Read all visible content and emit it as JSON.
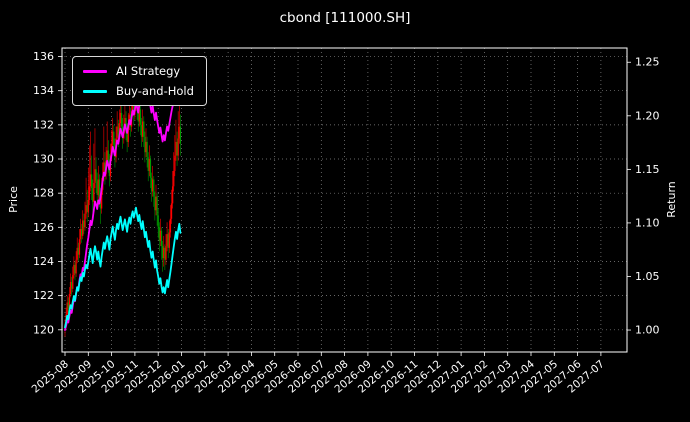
{
  "chart_data": {
    "type": "candlestick+line",
    "title": "cbond [111000.SH]",
    "ylabel_left": "Price",
    "ylabel_right": "Return",
    "grid": true,
    "legend_position": "upper-left",
    "x_tick_labels": [
      "2025-08",
      "2025-09",
      "2025-10",
      "2025-11",
      "2025-12",
      "2026-01",
      "2026-02",
      "2026-03",
      "2026-04",
      "2026-05",
      "2026-06",
      "2026-07",
      "2026-08",
      "2026-09",
      "2026-10",
      "2026-11",
      "2026-12",
      "2027-01",
      "2027-02",
      "2027-03",
      "2027-04",
      "2027-05",
      "2027-06",
      "2027-07"
    ],
    "price_axis": {
      "min": 118.7,
      "max": 136.5,
      "ticks": [
        120,
        122,
        124,
        126,
        128,
        130,
        132,
        134,
        136
      ]
    },
    "return_axis": {
      "min": 0.9795,
      "max": 1.2633,
      "ticks": [
        1.0,
        1.05,
        1.1,
        1.15,
        1.2,
        1.25
      ]
    },
    "legend": [
      {
        "id": "ai-strategy",
        "label": "AI Strategy",
        "color": "#ff00ff"
      },
      {
        "id": "buy-and-hold",
        "label": "Buy-and-Hold",
        "color": "#00ffff"
      }
    ],
    "colors": {
      "background": "#000000",
      "text": "#ffffff",
      "grid": "#888888",
      "candle_up": "#ff0000",
      "candle_down": "#009900"
    },
    "x_data": {
      "start_tick_index": 0,
      "points_per_month": 21
    },
    "candles_ohlc": [
      [
        120.0,
        120.6,
        119.6,
        120.3
      ],
      [
        120.3,
        121.3,
        120.1,
        120.9
      ],
      [
        120.9,
        122.0,
        120.7,
        121.6
      ],
      [
        121.6,
        121.9,
        120.8,
        121.2
      ],
      [
        121.2,
        122.5,
        121.0,
        122.1
      ],
      [
        122.1,
        123.3,
        121.9,
        122.8
      ],
      [
        122.8,
        123.1,
        122.0,
        122.4
      ],
      [
        122.4,
        123.7,
        122.2,
        123.2
      ],
      [
        123.2,
        124.3,
        123.0,
        123.8
      ],
      [
        123.8,
        124.0,
        122.9,
        123.3
      ],
      [
        123.3,
        124.6,
        123.1,
        124.1
      ],
      [
        124.1,
        125.4,
        123.9,
        124.8
      ],
      [
        124.8,
        125.1,
        124.0,
        124.4
      ],
      [
        124.4,
        125.9,
        124.2,
        125.3
      ],
      [
        125.3,
        126.5,
        125.0,
        125.9
      ],
      [
        125.9,
        126.2,
        125.1,
        125.5
      ],
      [
        125.5,
        127.0,
        125.3,
        126.4
      ],
      [
        126.4,
        126.8,
        125.6,
        126.0
      ],
      [
        126.0,
        127.5,
        125.8,
        126.8
      ],
      [
        126.8,
        128.9,
        126.5,
        127.3
      ],
      [
        127.3,
        128.2,
        126.3,
        126.9
      ],
      [
        126.9,
        129.5,
        126.6,
        127.6
      ],
      [
        127.6,
        130.8,
        127.3,
        128.4
      ],
      [
        128.4,
        131.6,
        128.1,
        129.1
      ],
      [
        129.1,
        130.2,
        127.6,
        128.3
      ],
      [
        128.3,
        128.8,
        126.5,
        127.5
      ],
      [
        127.5,
        130.9,
        127.2,
        128.6
      ],
      [
        128.6,
        131.8,
        128.3,
        129.4
      ],
      [
        129.4,
        130.1,
        128.0,
        128.7
      ],
      [
        128.7,
        129.2,
        127.1,
        127.9
      ],
      [
        127.9,
        129.6,
        127.6,
        128.8
      ],
      [
        128.8,
        129.1,
        127.2,
        127.8
      ],
      [
        127.8,
        128.3,
        126.2,
        127.1
      ],
      [
        127.1,
        128.9,
        126.8,
        128.2
      ],
      [
        128.2,
        129.8,
        127.9,
        129.0
      ],
      [
        129.0,
        131.9,
        128.7,
        129.8
      ],
      [
        129.8,
        130.4,
        128.5,
        129.1
      ],
      [
        129.1,
        130.7,
        128.8,
        129.9
      ],
      [
        129.9,
        132.2,
        129.6,
        130.5
      ],
      [
        130.5,
        131.1,
        129.2,
        129.8
      ],
      [
        129.8,
        130.3,
        128.4,
        129.0
      ],
      [
        129.0,
        130.9,
        128.7,
        130.2
      ],
      [
        130.2,
        131.7,
        129.9,
        130.9
      ],
      [
        130.9,
        132.4,
        130.6,
        131.6
      ],
      [
        131.6,
        132.0,
        130.2,
        130.8
      ],
      [
        130.8,
        131.2,
        129.5,
        130.1
      ],
      [
        130.1,
        131.9,
        129.8,
        131.2
      ],
      [
        131.2,
        132.8,
        130.9,
        131.9
      ],
      [
        131.9,
        132.3,
        130.7,
        131.3
      ],
      [
        131.3,
        132.9,
        131.0,
        132.1
      ],
      [
        132.1,
        133.6,
        131.8,
        132.7
      ],
      [
        132.7,
        133.1,
        131.3,
        131.9
      ],
      [
        131.9,
        132.4,
        130.6,
        131.2
      ],
      [
        131.2,
        132.6,
        130.9,
        131.8
      ],
      [
        131.8,
        133.2,
        131.5,
        132.4
      ],
      [
        132.4,
        132.8,
        131.1,
        131.7
      ],
      [
        131.7,
        132.1,
        130.4,
        131.0
      ],
      [
        131.0,
        132.7,
        130.7,
        132.0
      ],
      [
        132.0,
        133.4,
        131.7,
        132.6
      ],
      [
        132.6,
        133.0,
        131.3,
        131.9
      ],
      [
        131.9,
        133.7,
        131.6,
        132.8
      ],
      [
        132.8,
        134.3,
        132.5,
        133.3
      ],
      [
        133.3,
        133.8,
        132.0,
        132.6
      ],
      [
        132.6,
        134.0,
        132.3,
        133.1
      ],
      [
        133.1,
        134.6,
        132.8,
        133.7
      ],
      [
        133.7,
        134.1,
        132.3,
        132.9
      ],
      [
        132.9,
        133.3,
        131.6,
        132.2
      ],
      [
        132.2,
        133.8,
        131.9,
        132.9
      ],
      [
        132.9,
        133.2,
        131.4,
        132.0
      ],
      [
        132.0,
        132.4,
        130.7,
        131.3
      ],
      [
        131.3,
        132.9,
        131.0,
        132.2
      ],
      [
        132.2,
        132.5,
        130.7,
        131.3
      ],
      [
        131.3,
        131.6,
        129.8,
        130.4
      ],
      [
        130.4,
        131.8,
        130.1,
        131.0
      ],
      [
        131.0,
        131.3,
        129.5,
        130.1
      ],
      [
        130.1,
        130.4,
        128.7,
        129.3
      ],
      [
        129.3,
        130.8,
        129.0,
        130.0
      ],
      [
        130.0,
        130.2,
        128.3,
        128.9
      ],
      [
        128.9,
        129.2,
        127.5,
        128.1
      ],
      [
        128.1,
        129.6,
        127.8,
        128.8
      ],
      [
        128.8,
        129.0,
        127.2,
        127.8
      ],
      [
        127.8,
        128.1,
        126.4,
        127.0
      ],
      [
        127.0,
        128.5,
        126.7,
        127.8
      ],
      [
        127.8,
        128.0,
        126.1,
        126.7
      ],
      [
        126.7,
        127.1,
        125.4,
        126.0
      ],
      [
        126.0,
        126.3,
        124.6,
        125.2
      ],
      [
        125.2,
        126.5,
        124.9,
        125.8
      ],
      [
        125.8,
        126.0,
        124.1,
        124.9
      ],
      [
        124.9,
        125.2,
        123.4,
        124.2
      ],
      [
        124.2,
        125.5,
        123.7,
        124.8
      ],
      [
        124.8,
        125.0,
        123.5,
        124.1
      ],
      [
        124.1,
        125.6,
        123.8,
        124.9
      ],
      [
        124.9,
        126.3,
        124.6,
        125.6
      ],
      [
        125.6,
        125.9,
        124.2,
        124.8
      ],
      [
        124.8,
        126.4,
        124.5,
        125.7
      ],
      [
        125.7,
        127.3,
        125.4,
        126.5
      ],
      [
        126.5,
        128.2,
        126.2,
        127.4
      ],
      [
        127.4,
        129.3,
        127.1,
        128.4
      ],
      [
        128.4,
        130.4,
        128.1,
        129.3
      ],
      [
        129.3,
        131.4,
        129.0,
        130.2
      ],
      [
        130.2,
        132.3,
        129.9,
        131.0
      ],
      [
        131.0,
        131.6,
        129.6,
        130.2
      ],
      [
        130.2,
        132.8,
        129.9,
        131.2
      ],
      [
        131.2,
        133.9,
        130.9,
        131.9
      ],
      [
        131.9,
        132.6,
        130.2,
        130.9
      ]
    ],
    "series": [
      {
        "id": "ai-strategy-line",
        "name": "AI Strategy",
        "axis": "return",
        "color": "#ff00ff",
        "values": [
          1.0,
          1.004,
          1.009,
          1.007,
          1.013,
          1.018,
          1.016,
          1.023,
          1.029,
          1.027,
          1.034,
          1.04,
          1.038,
          1.046,
          1.052,
          1.05,
          1.058,
          1.056,
          1.064,
          1.072,
          1.08,
          1.086,
          1.094,
          1.102,
          1.098,
          1.104,
          1.112,
          1.12,
          1.117,
          1.113,
          1.121,
          1.118,
          1.124,
          1.132,
          1.14,
          1.147,
          1.144,
          1.151,
          1.158,
          1.154,
          1.15,
          1.158,
          1.164,
          1.171,
          1.167,
          1.163,
          1.17,
          1.177,
          1.174,
          1.181,
          1.188,
          1.184,
          1.18,
          1.186,
          1.192,
          1.188,
          1.184,
          1.19,
          1.196,
          1.192,
          1.199,
          1.205,
          1.201,
          1.206,
          1.212,
          1.208,
          1.203,
          1.21,
          1.216,
          1.222,
          1.228,
          1.224,
          1.218,
          1.223,
          1.217,
          1.211,
          1.216,
          1.209,
          1.203,
          1.209,
          1.202,
          1.196,
          1.203,
          1.196,
          1.19,
          1.184,
          1.189,
          1.182,
          1.176,
          1.182,
          1.177,
          1.184,
          1.19,
          1.186,
          1.192,
          1.198,
          1.204,
          1.209,
          1.214,
          1.218,
          1.222,
          1.218,
          1.222,
          1.226,
          1.222
        ]
      },
      {
        "id": "buy-and-hold-line",
        "name": "Buy-and-Hold",
        "axis": "return",
        "color": "#00ffff",
        "values": [
          1.0025,
          1.0075,
          1.0133,
          1.01,
          1.0175,
          1.0233,
          1.02,
          1.0267,
          1.0317,
          1.0275,
          1.0342,
          1.04,
          1.0367,
          1.0442,
          1.0492,
          1.0458,
          1.0533,
          1.05,
          1.0567,
          1.0608,
          1.0575,
          1.0633,
          1.07,
          1.0758,
          1.0692,
          1.0625,
          1.0717,
          1.0783,
          1.0725,
          1.0658,
          1.0733,
          1.065,
          1.0592,
          1.0683,
          1.075,
          1.0817,
          1.0758,
          1.0825,
          1.0875,
          1.0817,
          1.075,
          1.085,
          1.0908,
          1.0967,
          1.09,
          1.0842,
          1.0933,
          1.0992,
          1.0942,
          1.1008,
          1.1058,
          1.0992,
          1.0933,
          1.0983,
          1.1033,
          1.0975,
          1.0917,
          1.1,
          1.105,
          1.0992,
          1.1067,
          1.1108,
          1.105,
          1.1092,
          1.1142,
          1.1075,
          1.1017,
          1.1075,
          1.1,
          1.0942,
          1.1017,
          1.0942,
          1.0867,
          1.0917,
          1.0842,
          1.0775,
          1.0833,
          1.0742,
          1.0675,
          1.0733,
          1.065,
          1.0583,
          1.065,
          1.0558,
          1.05,
          1.0433,
          1.0483,
          1.0408,
          1.035,
          1.04,
          1.0342,
          1.0408,
          1.0467,
          1.04,
          1.0475,
          1.0542,
          1.0617,
          1.07,
          1.0775,
          1.085,
          1.0917,
          1.085,
          1.0933,
          1.0992,
          1.0908
        ]
      }
    ]
  }
}
